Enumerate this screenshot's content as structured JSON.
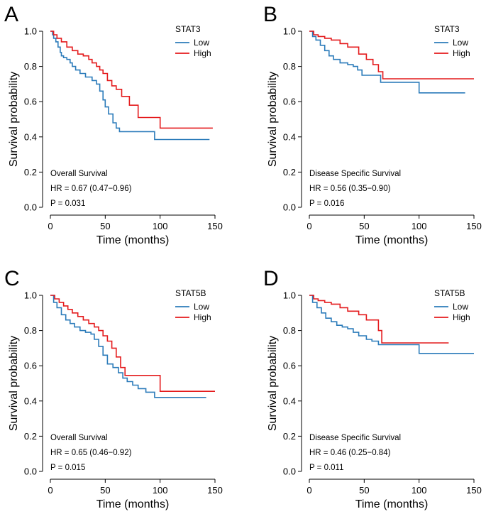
{
  "colors": {
    "low": "#2B7BBA",
    "high": "#E41A1C",
    "axis": "#000000"
  },
  "chart_data": [
    {
      "type": "line",
      "panel_letter": "A",
      "legend_title": "STAT3",
      "annotation": [
        "Overall Survival",
        "HR = 0.67 (0.47−0.96)",
        "P = 0.031"
      ],
      "xlabel": "Time (months)",
      "ylabel": "Survival probability",
      "xlim": [
        0,
        150
      ],
      "ylim": [
        0,
        1
      ],
      "xticks": [
        0,
        50,
        100,
        150
      ],
      "yticks": [
        0.0,
        0.2,
        0.4,
        0.6,
        0.8,
        1.0
      ],
      "xtick_labels": [
        "0",
        "50",
        "100",
        "150"
      ],
      "ytick_labels": [
        "0.0",
        "0.2",
        "0.4",
        "0.6",
        "0.8",
        "1.0"
      ],
      "legend_position": "top-right",
      "series": [
        {
          "name": "Low",
          "color_key": "low",
          "x": [
            0,
            2,
            3,
            5,
            7,
            9,
            10,
            12,
            15,
            18,
            20,
            23,
            27,
            32,
            38,
            42,
            45,
            48,
            50,
            53,
            57,
            60,
            63,
            95,
            145
          ],
          "y": [
            1.0,
            0.98,
            0.96,
            0.94,
            0.91,
            0.88,
            0.86,
            0.85,
            0.84,
            0.82,
            0.8,
            0.78,
            0.76,
            0.74,
            0.72,
            0.7,
            0.66,
            0.61,
            0.57,
            0.53,
            0.48,
            0.45,
            0.43,
            0.385,
            0.385
          ]
        },
        {
          "name": "High",
          "color_key": "high",
          "x": [
            0,
            3,
            6,
            10,
            15,
            20,
            25,
            30,
            35,
            38,
            42,
            45,
            48,
            52,
            56,
            60,
            65,
            72,
            80,
            100,
            148
          ],
          "y": [
            1.0,
            0.98,
            0.96,
            0.94,
            0.91,
            0.89,
            0.87,
            0.86,
            0.84,
            0.82,
            0.8,
            0.78,
            0.76,
            0.72,
            0.69,
            0.67,
            0.63,
            0.58,
            0.51,
            0.45,
            0.45
          ]
        }
      ]
    },
    {
      "type": "line",
      "panel_letter": "B",
      "legend_title": "STAT3",
      "annotation": [
        "Disease Specific Survival",
        "HR = 0.56 (0.35−0.90)",
        "P = 0.016"
      ],
      "xlabel": "Time (months)",
      "ylabel": "Survival probability",
      "xlim": [
        0,
        150
      ],
      "ylim": [
        0,
        1
      ],
      "xticks": [
        0,
        50,
        100,
        150
      ],
      "yticks": [
        0.0,
        0.2,
        0.4,
        0.6,
        0.8,
        1.0
      ],
      "xtick_labels": [
        "0",
        "50",
        "100",
        "150"
      ],
      "ytick_labels": [
        "0.0",
        "0.2",
        "0.4",
        "0.6",
        "0.8",
        "1.0"
      ],
      "legend_position": "top-right",
      "series": [
        {
          "name": "Low",
          "color_key": "low",
          "x": [
            0,
            3,
            6,
            10,
            14,
            18,
            22,
            28,
            35,
            40,
            44,
            48,
            65,
            100,
            142
          ],
          "y": [
            1.0,
            0.97,
            0.95,
            0.92,
            0.89,
            0.86,
            0.84,
            0.82,
            0.81,
            0.8,
            0.78,
            0.75,
            0.71,
            0.65,
            0.65
          ]
        },
        {
          "name": "High",
          "color_key": "high",
          "x": [
            0,
            4,
            8,
            14,
            20,
            28,
            35,
            45,
            52,
            58,
            63,
            67,
            150
          ],
          "y": [
            1.0,
            0.98,
            0.97,
            0.96,
            0.95,
            0.93,
            0.91,
            0.87,
            0.84,
            0.81,
            0.77,
            0.73,
            0.73
          ]
        }
      ]
    },
    {
      "type": "line",
      "panel_letter": "C",
      "legend_title": "STAT5B",
      "annotation": [
        "Overall Survival",
        "HR = 0.65 (0.46−0.92)",
        "P = 0.015"
      ],
      "xlabel": "Time (months)",
      "ylabel": "Survival probability",
      "xlim": [
        0,
        150
      ],
      "ylim": [
        0,
        1
      ],
      "xticks": [
        0,
        50,
        100,
        150
      ],
      "yticks": [
        0.0,
        0.2,
        0.4,
        0.6,
        0.8,
        1.0
      ],
      "xtick_labels": [
        "0",
        "50",
        "100",
        "150"
      ],
      "ytick_labels": [
        "0.0",
        "0.2",
        "0.4",
        "0.6",
        "0.8",
        "1.0"
      ],
      "legend_position": "top-right",
      "series": [
        {
          "name": "Low",
          "color_key": "low",
          "x": [
            0,
            3,
            6,
            10,
            14,
            18,
            22,
            27,
            32,
            37,
            40,
            44,
            48,
            52,
            57,
            62,
            66,
            70,
            75,
            80,
            87,
            95,
            142
          ],
          "y": [
            1.0,
            0.96,
            0.93,
            0.89,
            0.86,
            0.84,
            0.82,
            0.8,
            0.79,
            0.78,
            0.75,
            0.71,
            0.66,
            0.61,
            0.59,
            0.56,
            0.53,
            0.51,
            0.49,
            0.47,
            0.45,
            0.42,
            0.42
          ]
        },
        {
          "name": "High",
          "color_key": "high",
          "x": [
            0,
            4,
            8,
            12,
            16,
            20,
            25,
            30,
            35,
            40,
            44,
            48,
            52,
            56,
            60,
            64,
            68,
            100,
            150
          ],
          "y": [
            1.0,
            0.98,
            0.96,
            0.94,
            0.92,
            0.9,
            0.88,
            0.86,
            0.84,
            0.82,
            0.8,
            0.77,
            0.74,
            0.7,
            0.65,
            0.59,
            0.545,
            0.455,
            0.455
          ]
        }
      ]
    },
    {
      "type": "line",
      "panel_letter": "D",
      "legend_title": "STAT5B",
      "annotation": [
        "Disease Specific Survival",
        "HR = 0.46 (0.25−0.84)",
        "P = 0.011"
      ],
      "xlabel": "Time (months)",
      "ylabel": "Survival probability",
      "xlim": [
        0,
        150
      ],
      "ylim": [
        0,
        1
      ],
      "xticks": [
        0,
        50,
        100,
        150
      ],
      "yticks": [
        0.0,
        0.2,
        0.4,
        0.6,
        0.8,
        1.0
      ],
      "xtick_labels": [
        "0",
        "50",
        "100",
        "150"
      ],
      "ytick_labels": [
        "0.0",
        "0.2",
        "0.4",
        "0.6",
        "0.8",
        "1.0"
      ],
      "legend_position": "top-right",
      "series": [
        {
          "name": "Low",
          "color_key": "low",
          "x": [
            0,
            3,
            7,
            11,
            15,
            20,
            25,
            30,
            35,
            40,
            45,
            52,
            57,
            63,
            68,
            100,
            150
          ],
          "y": [
            1.0,
            0.96,
            0.93,
            0.9,
            0.87,
            0.85,
            0.83,
            0.82,
            0.81,
            0.79,
            0.77,
            0.75,
            0.74,
            0.72,
            0.72,
            0.67,
            0.67
          ]
        },
        {
          "name": "High",
          "color_key": "high",
          "x": [
            0,
            4,
            8,
            14,
            20,
            28,
            35,
            45,
            52,
            58,
            63,
            66,
            127
          ],
          "y": [
            1.0,
            0.98,
            0.97,
            0.96,
            0.95,
            0.93,
            0.91,
            0.89,
            0.86,
            0.86,
            0.8,
            0.73,
            0.73
          ]
        }
      ]
    }
  ]
}
